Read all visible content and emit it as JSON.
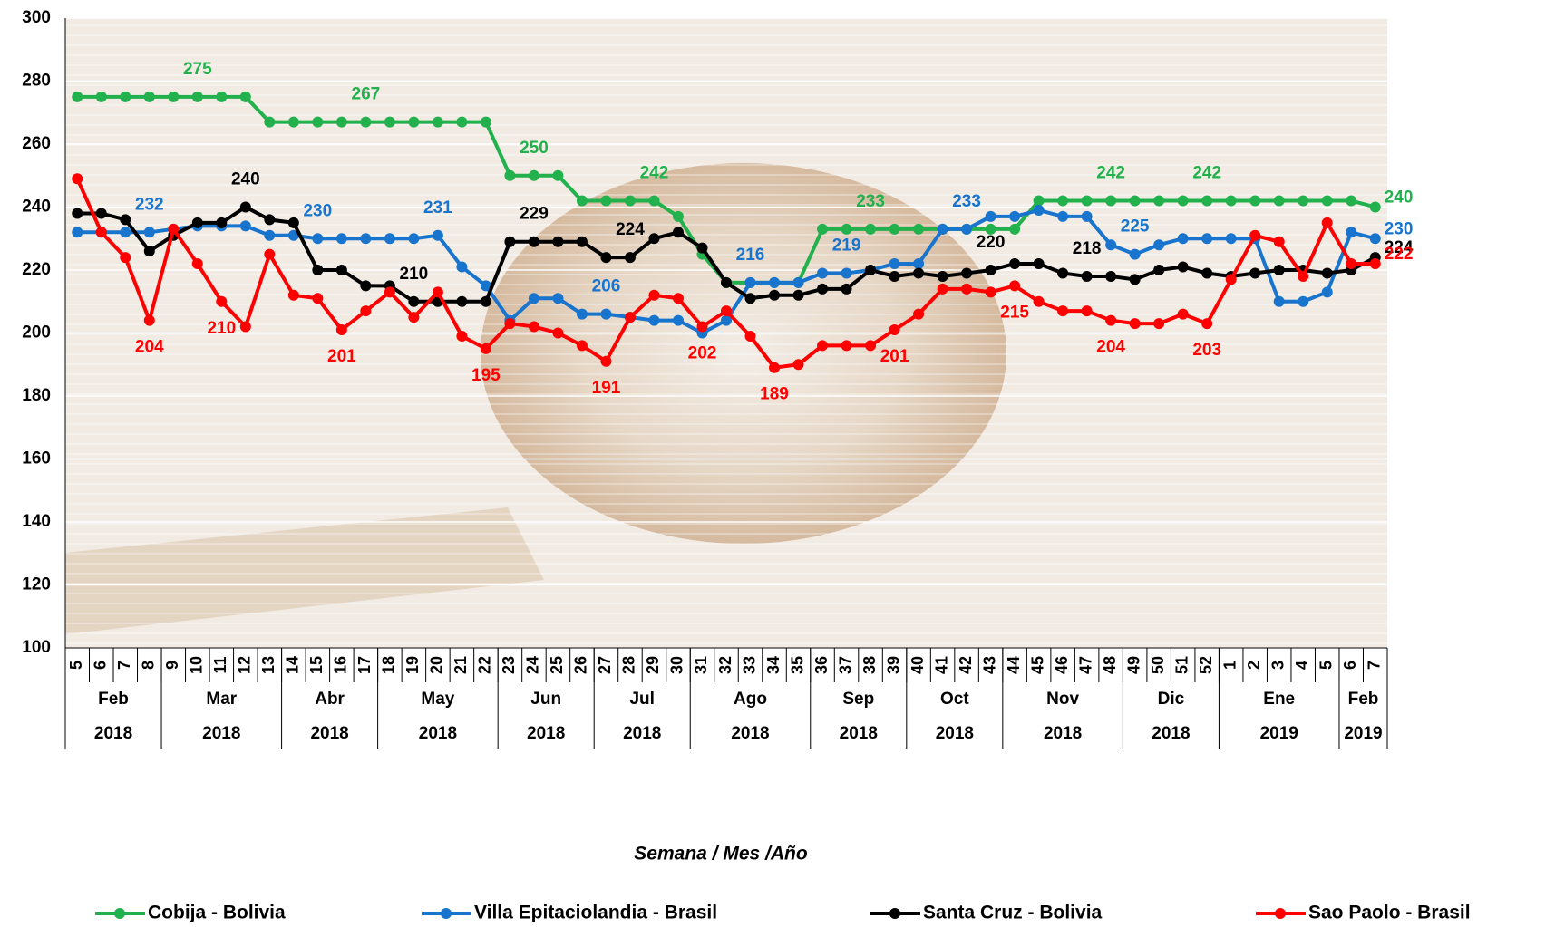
{
  "chart_data": {
    "type": "line",
    "xlabel": "Semana / Mes /Año",
    "categories": [
      "5",
      "6",
      "7",
      "8",
      "9",
      "10",
      "11",
      "12",
      "13",
      "14",
      "15",
      "16",
      "17",
      "18",
      "19",
      "20",
      "21",
      "22",
      "23",
      "24",
      "25",
      "26",
      "27",
      "28",
      "29",
      "30",
      "31",
      "32",
      "33",
      "34",
      "35",
      "36",
      "37",
      "38",
      "39",
      "40",
      "41",
      "42",
      "43",
      "44",
      "45",
      "46",
      "47",
      "48",
      "49",
      "50",
      "51",
      "52",
      "1",
      "2",
      "3",
      "4",
      "5",
      "6",
      "7"
    ],
    "groups": [
      {
        "label": "Feb",
        "year": "2018",
        "first": 0,
        "last": 3
      },
      {
        "label": "Mar",
        "year": "2018",
        "first": 4,
        "last": 8
      },
      {
        "label": "Abr",
        "year": "2018",
        "first": 9,
        "last": 12
      },
      {
        "label": "May",
        "year": "2018",
        "first": 13,
        "last": 17
      },
      {
        "label": "Jun",
        "year": "2018",
        "first": 18,
        "last": 21
      },
      {
        "label": "Jul",
        "year": "2018",
        "first": 22,
        "last": 25
      },
      {
        "label": "Ago",
        "year": "2018",
        "first": 26,
        "last": 30
      },
      {
        "label": "Sep",
        "year": "2018",
        "first": 31,
        "last": 34
      },
      {
        "label": "Oct",
        "year": "2018",
        "first": 35,
        "last": 38
      },
      {
        "label": "Nov",
        "year": "2018",
        "first": 39,
        "last": 43
      },
      {
        "label": "Dic",
        "year": "2018",
        "first": 44,
        "last": 47
      },
      {
        "label": "Ene",
        "year": "2019",
        "first": 48,
        "last": 52
      },
      {
        "label": "Feb",
        "year": "2019",
        "first": 53,
        "last": 54
      }
    ],
    "series": [
      {
        "name": "Cobija - Bolivia",
        "color": "#22b14c",
        "values": [
          275,
          275,
          275,
          275,
          275,
          275,
          275,
          275,
          267,
          267,
          267,
          267,
          267,
          267,
          267,
          267,
          267,
          267,
          250,
          250,
          250,
          242,
          242,
          242,
          242,
          237,
          225,
          216,
          216,
          216,
          216,
          233,
          233,
          233,
          233,
          233,
          233,
          233,
          233,
          233,
          242,
          242,
          242,
          242,
          242,
          242,
          242,
          242,
          242,
          242,
          242,
          242,
          242,
          242,
          240
        ]
      },
      {
        "name": "Villa Epitaciolandia - Brasil",
        "color": "#1874cd",
        "values": [
          232,
          232,
          232,
          232,
          233,
          234,
          234,
          234,
          231,
          231,
          230,
          230,
          230,
          230,
          230,
          231,
          221,
          215,
          204,
          211,
          211,
          206,
          206,
          205,
          204,
          204,
          200,
          204,
          216,
          216,
          216,
          219,
          219,
          220,
          222,
          222,
          233,
          233,
          237,
          237,
          239,
          237,
          237,
          228,
          225,
          228,
          230,
          230,
          230,
          230,
          210,
          210,
          213,
          232,
          230
        ]
      },
      {
        "name": "Santa Cruz - Bolivia",
        "color": "#000000",
        "values": [
          238,
          238,
          236,
          226,
          231,
          235,
          235,
          240,
          236,
          235,
          220,
          220,
          215,
          215,
          210,
          210,
          210,
          210,
          229,
          229,
          229,
          229,
          224,
          224,
          230,
          232,
          227,
          216,
          211,
          212,
          212,
          214,
          214,
          220,
          218,
          219,
          218,
          219,
          220,
          222,
          222,
          219,
          218,
          218,
          217,
          220,
          221,
          219,
          218,
          219,
          220,
          220,
          219,
          220,
          224
        ]
      },
      {
        "name": "Sao Paolo - Brasil",
        "color": "#ff0000",
        "values": [
          249,
          232,
          224,
          204,
          233,
          222,
          210,
          202,
          225,
          212,
          211,
          201,
          207,
          213,
          205,
          213,
          199,
          195,
          203,
          202,
          200,
          196,
          191,
          205,
          212,
          211,
          202,
          207,
          199,
          189,
          190,
          196,
          196,
          196,
          201,
          206,
          214,
          214,
          213,
          215,
          210,
          207,
          207,
          204,
          203,
          203,
          206,
          203,
          217,
          231,
          229,
          218,
          235,
          222,
          222
        ]
      }
    ],
    "annotations": [
      {
        "series": 0,
        "index": 5,
        "pos": "above"
      },
      {
        "series": 0,
        "index": 12,
        "pos": "above"
      },
      {
        "series": 0,
        "index": 19,
        "pos": "above"
      },
      {
        "series": 0,
        "index": 24,
        "pos": "above"
      },
      {
        "series": 0,
        "index": 33,
        "pos": "above"
      },
      {
        "series": 0,
        "index": 43,
        "pos": "above"
      },
      {
        "series": 0,
        "index": 47,
        "pos": "above"
      },
      {
        "series": 0,
        "index": 54,
        "pos": "right"
      },
      {
        "series": 1,
        "index": 3,
        "pos": "above"
      },
      {
        "series": 1,
        "index": 10,
        "pos": "above"
      },
      {
        "series": 1,
        "index": 15,
        "pos": "above"
      },
      {
        "series": 1,
        "index": 22,
        "pos": "above"
      },
      {
        "series": 1,
        "index": 28,
        "pos": "above"
      },
      {
        "series": 1,
        "index": 32,
        "pos": "above"
      },
      {
        "series": 1,
        "index": 37,
        "pos": "above"
      },
      {
        "series": 1,
        "index": 44,
        "pos": "above"
      },
      {
        "series": 1,
        "index": 54,
        "pos": "right"
      },
      {
        "series": 2,
        "index": 7,
        "pos": "above"
      },
      {
        "series": 2,
        "index": 14,
        "pos": "above"
      },
      {
        "series": 2,
        "index": 19,
        "pos": "above"
      },
      {
        "series": 2,
        "index": 23,
        "pos": "above"
      },
      {
        "series": 2,
        "index": 38,
        "pos": "above"
      },
      {
        "series": 2,
        "index": 42,
        "pos": "above"
      },
      {
        "series": 2,
        "index": 54,
        "pos": "right"
      },
      {
        "series": 3,
        "index": 3,
        "pos": "below"
      },
      {
        "series": 3,
        "index": 6,
        "pos": "below"
      },
      {
        "series": 3,
        "index": 11,
        "pos": "below"
      },
      {
        "series": 3,
        "index": 17,
        "pos": "below"
      },
      {
        "series": 3,
        "index": 22,
        "pos": "below"
      },
      {
        "series": 3,
        "index": 26,
        "pos": "below"
      },
      {
        "series": 3,
        "index": 29,
        "pos": "below"
      },
      {
        "series": 3,
        "index": 34,
        "pos": "below"
      },
      {
        "series": 3,
        "index": 39,
        "pos": "below"
      },
      {
        "series": 3,
        "index": 43,
        "pos": "below"
      },
      {
        "series": 3,
        "index": 47,
        "pos": "below"
      },
      {
        "series": 3,
        "index": 54,
        "pos": "right"
      }
    ],
    "ylim": [
      100,
      300
    ],
    "yticks": [
      100,
      120,
      140,
      160,
      180,
      200,
      220,
      240,
      260,
      280,
      300
    ],
    "grid": true
  }
}
